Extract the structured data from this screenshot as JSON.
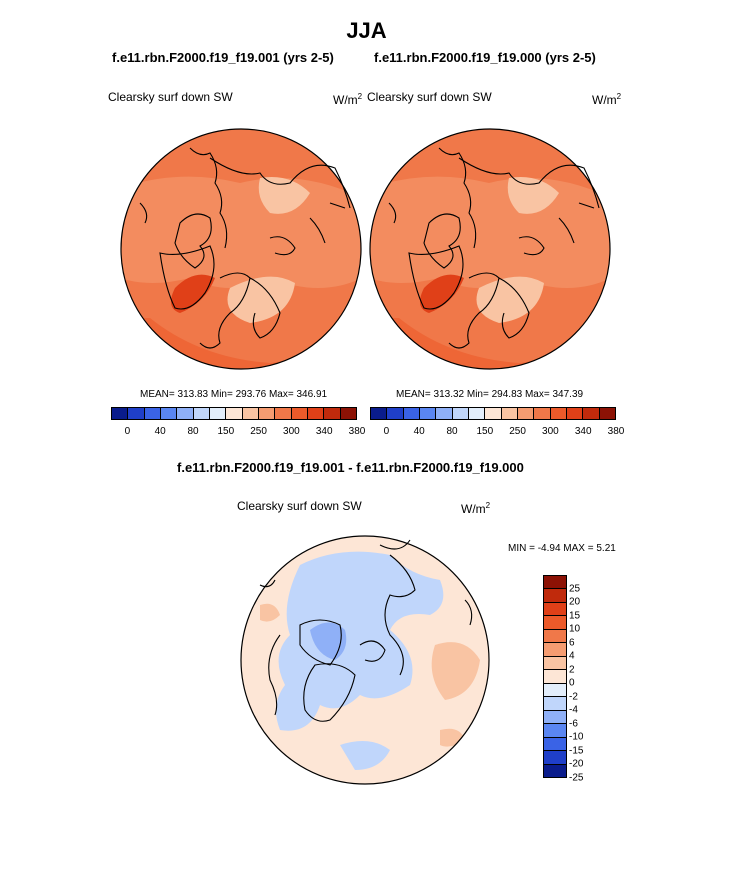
{
  "title": "JJA",
  "panels": [
    {
      "case": "f.e11.rbn.F2000.f19_f19.001 (yrs 2-5)",
      "variable": "Clearsky surf down SW",
      "units": "W/m",
      "units_exp": "2",
      "stats": "MEAN= 313.83  Min= 293.76  Max= 346.91"
    },
    {
      "case": "f.e11.rbn.F2000.f19_f19.000 (yrs 2-5)",
      "variable": "Clearsky surf down SW",
      "units": "W/m",
      "units_exp": "2",
      "stats": "MEAN= 313.32  Min= 294.83  Max= 347.39"
    }
  ],
  "colorbar_top": {
    "colors": [
      "#0a1c8c",
      "#1f3fc9",
      "#3a63e6",
      "#5a86f2",
      "#8fb0f7",
      "#c0d6fb",
      "#e3eefb",
      "#fde6d6",
      "#f9c4a3",
      "#f59c71",
      "#f07849",
      "#ec5a2a",
      "#e04018",
      "#c02a0c",
      "#8c1205"
    ],
    "ticks": [
      "0",
      "40",
      "80",
      "150",
      "250",
      "300",
      "340",
      "380"
    ]
  },
  "diff": {
    "title": "f.e11.rbn.F2000.f19_f19.001 - f.e11.rbn.F2000.f19_f19.000",
    "variable": "Clearsky surf down SW",
    "units": "W/m",
    "units_exp": "2",
    "minmax": "MIN =  -4.94 MAX =   5.21",
    "colors": [
      "#8c1205",
      "#c02a0c",
      "#e04018",
      "#ec5a2a",
      "#f07849",
      "#f59c71",
      "#f9c4a3",
      "#fde6d6",
      "#e3eefb",
      "#c0d6fb",
      "#8fb0f7",
      "#5a86f2",
      "#3a63e6",
      "#1f3fc9",
      "#0a1c8c"
    ],
    "ticks": [
      "25",
      "20",
      "15",
      "10",
      "6",
      "4",
      "2",
      "0",
      "-2",
      "-4",
      "-6",
      "-10",
      "-15",
      "-20",
      "-25"
    ]
  },
  "map_colors": {
    "base": "#f07849",
    "light": "#f59c71",
    "pale": "#f9c4a3",
    "dark": "#ec5a2a",
    "darker": "#e04018",
    "diff_base": "#fde6d6",
    "diff_blue": "#c0d6fb",
    "diff_blue2": "#8fb0f7",
    "diff_red": "#f9c4a3"
  }
}
